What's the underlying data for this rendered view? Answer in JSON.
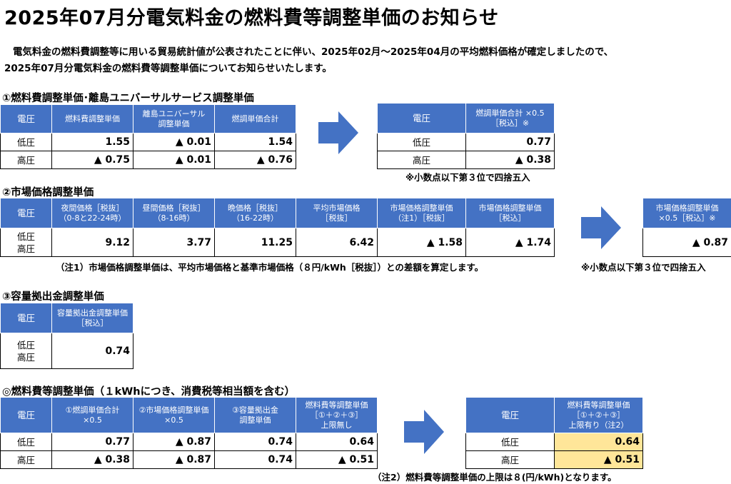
{
  "title": "2025年07月分電気料金の燃料費等調整単価のお知らせ",
  "intro": {
    "line1": "電気料金の燃料費調整等に用いる貿易統計値が公表されたことに伴い、2025年02月～2025年04月の平均燃料価格が確定しましたので、",
    "line2": "2025年07月分電気料金の燃料費等調整単価についてお知らせいたします。"
  },
  "section1": {
    "heading": "①燃料費調整単価･離島ユニバーサルサービス調整単価",
    "table1": {
      "headers": [
        "電圧",
        "燃料費調整単価",
        "離島ユニバーサル調整単価",
        "燃調単価合計"
      ],
      "rows": [
        {
          "label": "低圧",
          "v1": "1.55",
          "v2": "▲ 0.01",
          "v3": "1.54"
        },
        {
          "label": "高圧",
          "v1": "▲ 0.75",
          "v2": "▲ 0.01",
          "v3": "▲ 0.76"
        }
      ]
    },
    "table2": {
      "headers": [
        "電圧",
        "燃調単価合計 ×0.5［税込］※"
      ],
      "rows": [
        {
          "label": "低圧",
          "v": "0.77"
        },
        {
          "label": "高圧",
          "v": "▲ 0.38"
        }
      ]
    },
    "note": "※小数点以下第３位で四捨五入"
  },
  "section2": {
    "heading": "②市場価格調整単価",
    "table1": {
      "headers": [
        "電圧",
        "夜間価格［税抜］",
        "（0-8と22-24時）",
        "昼間価格［税抜］",
        "（8-16時）",
        "晩価格［税抜］",
        "（16-22時）",
        "平均市場価格",
        "［税抜］",
        "市場価格調整単価",
        "（注1）［税抜］",
        "市場価格調整単価",
        "［税込］"
      ],
      "label1": "低圧",
      "label2": "高圧",
      "values": [
        "9.12",
        "3.77",
        "11.25",
        "6.42",
        "▲ 1.58",
        "▲ 1.74"
      ]
    },
    "table2": {
      "header1": "市場価格調整単価",
      "header2": "×0.5［税込］※",
      "value": "▲ 0.87"
    },
    "note1": "（注1）市場価格調整単価は、平均市場価格と基準市場価格（８円/kWh［税抜］）との差額を算定します。",
    "note2": "※小数点以下第３位で四捨五入"
  },
  "section3": {
    "heading": "③容量拠出金調整単価",
    "headers": [
      "電圧",
      "容量拠出金調整単価",
      "［税込］"
    ],
    "label1": "低圧",
    "label2": "高圧",
    "value": "0.74"
  },
  "section4": {
    "heading": "◎燃料費等調整単価（１kWhにつき、消費税等相当額を含む）",
    "table1": {
      "headers": [
        "電圧",
        "①燃調単価合計",
        "×0.5",
        "②市場価格調整単価",
        "×0.5",
        "③容量拠出金",
        "調整単価",
        "燃料費等調整単価",
        "［①＋②＋③］",
        "上限無し"
      ],
      "rows": [
        {
          "label": "低圧",
          "v1": "0.77",
          "v2": "▲ 0.87",
          "v3": "0.74",
          "v4": "0.64"
        },
        {
          "label": "高圧",
          "v1": "▲ 0.38",
          "v2": "▲ 0.87",
          "v3": "0.74",
          "v4": "▲ 0.51"
        }
      ]
    },
    "table2": {
      "headers": [
        "電圧",
        "燃料費等調整単価",
        "［①＋②＋③］",
        "上限有り（注2）"
      ],
      "rows": [
        {
          "label": "低圧",
          "v": "0.64"
        },
        {
          "label": "高圧",
          "v": "▲ 0.51"
        }
      ]
    },
    "note": "（注2）燃料費等調整単価の上限は８(円/kWh)となります。"
  },
  "colors": {
    "header_blue": "#4472c4",
    "highlight": "#ffe699",
    "arrow": "#4472c4"
  },
  "icons": {
    "arrow": "right-arrow-icon"
  }
}
